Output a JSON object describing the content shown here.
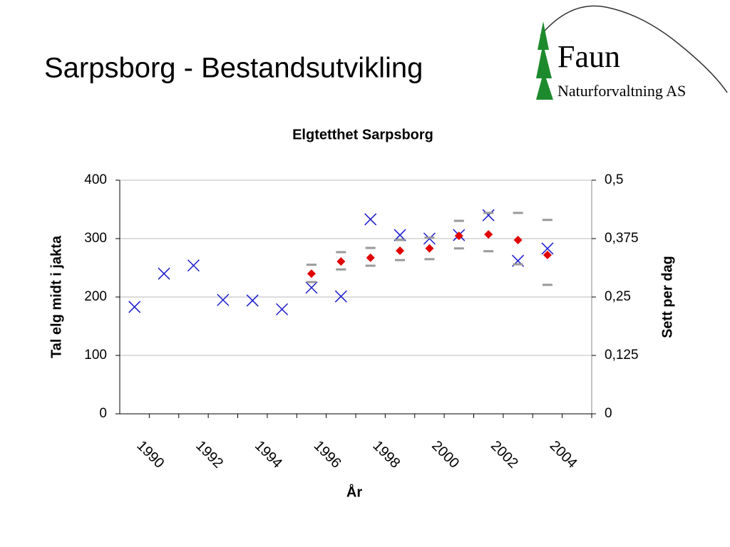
{
  "slide_title": "Sarpsborg - Bestandsutvikling",
  "logo": {
    "name": "Faun",
    "subtitle": "Naturforvaltning AS"
  },
  "chart_data": {
    "type": "scatter",
    "title": "Elgtetthet Sarpsborg",
    "x_label": "År",
    "y_label": "Tal elg midt i jakta",
    "y2_label": "Sett per dag",
    "categories": [
      "1990",
      null,
      "1992",
      null,
      "1994",
      null,
      "1996",
      null,
      "1998",
      null,
      "2000",
      null,
      "2002",
      null,
      "2004",
      null
    ],
    "ylim": [
      0,
      400
    ],
    "yticks": [
      0,
      100,
      200,
      300,
      400
    ],
    "y2lim": [
      0,
      0.5
    ],
    "y2ticks": [
      0,
      {
        "value": 0.125,
        "label": "0,125"
      },
      {
        "value": 0.25,
        "label": "0,25"
      },
      {
        "value": 0.375,
        "label": "0,375"
      },
      {
        "value": 0.5,
        "label": "0,5"
      }
    ],
    "grid": true,
    "series": [
      {
        "marker": "x",
        "color": "#1a1acc",
        "values": [
          183,
          240,
          254,
          195,
          194,
          179,
          216,
          201,
          333,
          306,
          300,
          306,
          340,
          262,
          283,
          null
        ]
      },
      {
        "marker": "diamond",
        "color": "#e00000",
        "axis": "y2",
        "range_color": "#999999",
        "values": [
          null,
          null,
          null,
          null,
          null,
          null,
          0.3,
          0.326,
          0.334,
          0.349,
          0.354,
          0.381,
          0.384,
          0.372,
          0.34,
          null
        ],
        "high": [
          null,
          null,
          null,
          null,
          null,
          null,
          0.319,
          0.346,
          0.355,
          0.372,
          0.377,
          0.413,
          0.43,
          0.43,
          0.415,
          null
        ],
        "low": [
          null,
          null,
          null,
          null,
          null,
          null,
          0.282,
          0.309,
          0.317,
          0.329,
          0.331,
          0.354,
          0.348,
          0.32,
          0.276,
          null
        ]
      }
    ]
  }
}
